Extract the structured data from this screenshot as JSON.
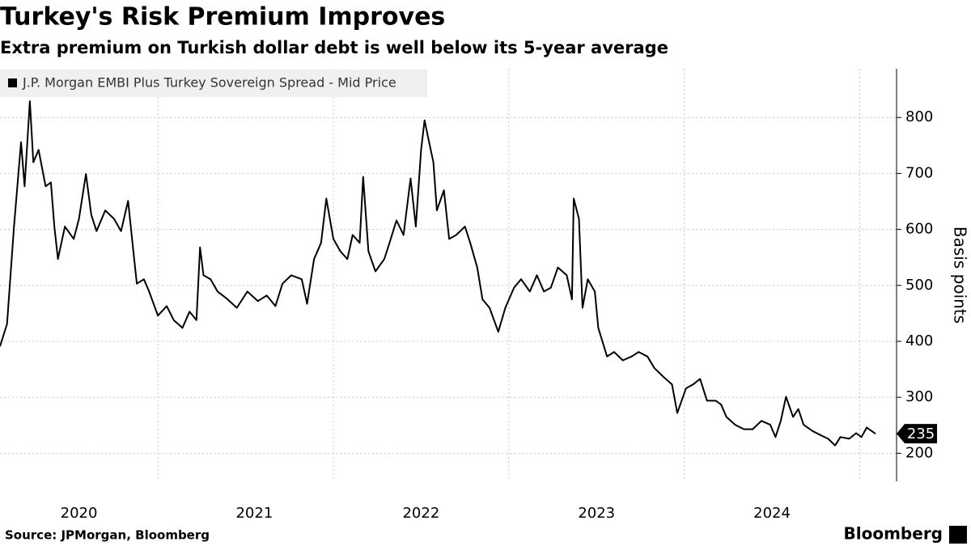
{
  "chart_data": {
    "type": "line",
    "title": "Turkey's Risk Premium Improves",
    "subtitle": "Extra premium on Turkish dollar debt is well below its 5-year average",
    "y_label": "Basis points",
    "source": "Source: JPMorgan, Bloomberg",
    "brand": "Bloomberg",
    "x": [
      2020.1,
      2020.14,
      2020.16,
      2020.18,
      2020.22,
      2020.24,
      2020.27,
      2020.29,
      2020.32,
      2020.36,
      2020.39,
      2020.41,
      2020.43,
      2020.47,
      2020.52,
      2020.55,
      2020.59,
      2020.62,
      2020.65,
      2020.7,
      2020.75,
      2020.79,
      2020.83,
      2020.86,
      2020.88,
      2020.92,
      2020.95,
      2021.0,
      2021.05,
      2021.09,
      2021.14,
      2021.18,
      2021.22,
      2021.24,
      2021.26,
      2021.3,
      2021.34,
      2021.39,
      2021.45,
      2021.51,
      2021.57,
      2021.62,
      2021.67,
      2021.71,
      2021.76,
      2021.82,
      2021.85,
      2021.89,
      2021.93,
      2021.96,
      2022.0,
      2022.04,
      2022.08,
      2022.11,
      2022.15,
      2022.17,
      2022.2,
      2022.24,
      2022.29,
      2022.32,
      2022.36,
      2022.4,
      2022.44,
      2022.47,
      2022.5,
      2022.52,
      2022.54,
      2022.57,
      2022.59,
      2022.63,
      2022.66,
      2022.7,
      2022.75,
      2022.78,
      2022.82,
      2022.85,
      2022.89,
      2022.94,
      2022.98,
      2023.03,
      2023.07,
      2023.12,
      2023.16,
      2023.2,
      2023.24,
      2023.28,
      2023.33,
      2023.36,
      2023.37,
      2023.4,
      2023.42,
      2023.45,
      2023.49,
      2023.51,
      2023.56,
      2023.6,
      2023.65,
      2023.7,
      2023.74,
      2023.79,
      2023.83,
      2023.88,
      2023.93,
      2023.96,
      2024.01,
      2024.05,
      2024.09,
      2024.13,
      2024.18,
      2024.21,
      2024.24,
      2024.29,
      2024.34,
      2024.39,
      2024.44,
      2024.49,
      2024.52,
      2024.55,
      2024.58,
      2024.62,
      2024.65,
      2024.68,
      2024.73,
      2024.78,
      2024.82,
      2024.86,
      2024.89,
      2024.94,
      2024.98,
      2025.01,
      2025.04,
      2025.09
    ],
    "series": [
      {
        "name": "J.P. Morgan EMBI Plus Turkey Sovereign Spread - Mid Price",
        "color": "#000000",
        "values": [
          391,
          431,
          518,
          605,
          756,
          677,
          829,
          720,
          742,
          677,
          684,
          605,
          547,
          605,
          583,
          619,
          699,
          626,
          597,
          634,
          619,
          597,
          651,
          561,
          503,
          511,
          489,
          446,
          463,
          438,
          424,
          453,
          438,
          568,
          518,
          511,
          489,
          477,
          460,
          489,
          472,
          482,
          463,
          503,
          518,
          511,
          467,
          547,
          576,
          655,
          583,
          561,
          547,
          590,
          576,
          694,
          561,
          525,
          547,
          576,
          616,
          590,
          691,
          605,
          742,
          795,
          764,
          720,
          634,
          670,
          583,
          590,
          605,
          576,
          532,
          475,
          460,
          417,
          460,
          496,
          511,
          489,
          518,
          489,
          496,
          532,
          518,
          475,
          655,
          619,
          460,
          511,
          489,
          424,
          373,
          381,
          366,
          373,
          381,
          373,
          352,
          337,
          323,
          272,
          316,
          323,
          333,
          294,
          294,
          287,
          265,
          251,
          243,
          243,
          258,
          251,
          229,
          258,
          301,
          265,
          279,
          251,
          240,
          232,
          226,
          214,
          229,
          226,
          236,
          229,
          246,
          235
        ]
      }
    ],
    "xlim": [
      2020.1,
      2025.21
    ],
    "xticks": [
      {
        "value": 2020.55,
        "label": "2020"
      },
      {
        "value": 2021.55,
        "label": "2021"
      },
      {
        "value": 2022.5,
        "label": "2022"
      },
      {
        "value": 2023.5,
        "label": "2023"
      },
      {
        "value": 2024.5,
        "label": "2024"
      }
    ],
    "xgrid": [
      2021,
      2022,
      2023,
      2024,
      2025
    ],
    "ylim": [
      150,
      887
    ],
    "yticks": [
      200,
      300,
      400,
      500,
      600,
      700,
      800
    ],
    "grid": true
  }
}
